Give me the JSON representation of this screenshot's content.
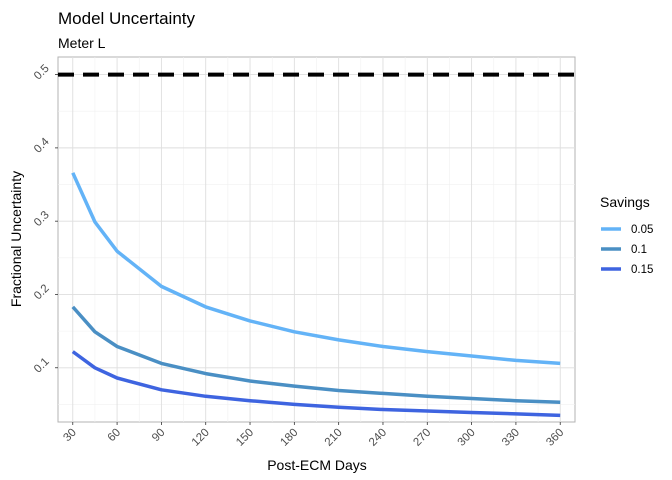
{
  "chart_data": {
    "type": "line",
    "title": "Model Uncertainty",
    "subtitle": "Meter L",
    "xlabel": "Post-ECM Days",
    "ylabel": "Fractional Uncertainty",
    "xlim": [
      20,
      370
    ],
    "ylim": [
      0.026,
      0.524
    ],
    "x_ticks": [
      30,
      60,
      90,
      120,
      150,
      180,
      210,
      240,
      270,
      300,
      330,
      360
    ],
    "y_ticks": [
      0.1,
      0.2,
      0.3,
      0.4,
      0.5
    ],
    "y_tick_labels": [
      "0.1",
      "0.2",
      "0.3",
      "0.4",
      "0.5"
    ],
    "grid": true,
    "legend": {
      "title": "Savings",
      "placement": "right"
    },
    "series": [
      {
        "name": "0.05",
        "color": "#63b3f7",
        "x": [
          30,
          45,
          60,
          90,
          120,
          150,
          180,
          210,
          240,
          270,
          300,
          330,
          360
        ],
        "values": [
          0.366,
          0.299,
          0.259,
          0.211,
          0.183,
          0.164,
          0.149,
          0.138,
          0.129,
          0.122,
          0.116,
          0.11,
          0.106
        ]
      },
      {
        "name": "0.1",
        "color": "#4a8fc4",
        "x": [
          30,
          45,
          60,
          90,
          120,
          150,
          180,
          210,
          240,
          270,
          300,
          330,
          360
        ],
        "values": [
          0.183,
          0.149,
          0.129,
          0.106,
          0.092,
          0.082,
          0.075,
          0.069,
          0.065,
          0.061,
          0.058,
          0.055,
          0.053
        ]
      },
      {
        "name": "0.15",
        "color": "#3e64e0",
        "x": [
          30,
          45,
          60,
          90,
          120,
          150,
          180,
          210,
          240,
          270,
          300,
          330,
          360
        ],
        "values": [
          0.122,
          0.1,
          0.086,
          0.07,
          0.061,
          0.055,
          0.05,
          0.046,
          0.043,
          0.041,
          0.039,
          0.037,
          0.035
        ]
      }
    ],
    "reference_line": {
      "y": 0.5,
      "style": "dashed",
      "color": "#000000"
    }
  }
}
